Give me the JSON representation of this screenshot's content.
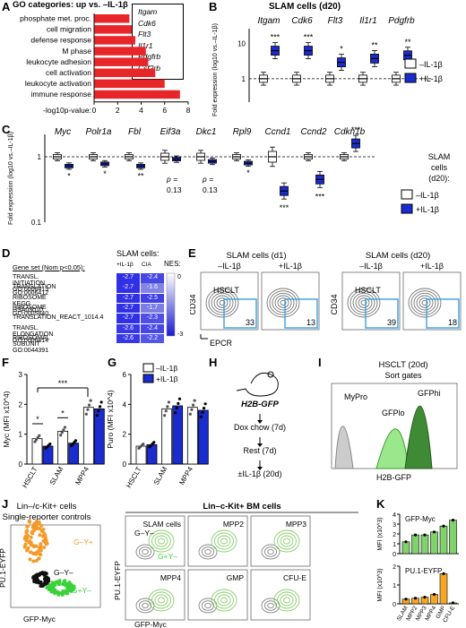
{
  "panels": {
    "A": "A",
    "B": "B",
    "C": "C",
    "D": "D",
    "E": "E",
    "F": "F",
    "G": "G",
    "H": "H",
    "I": "I",
    "J": "J",
    "K": "K"
  },
  "A": {
    "title": "GO categories: up vs. –IL-1β",
    "xlabel": "-log10p-value:",
    "ticks": [
      "0",
      "2",
      "4",
      "6",
      "8"
    ],
    "chart_data": {
      "type": "bar",
      "categories": [
        "phosphate met. proc.",
        "cell migration",
        "defense response",
        "M phase",
        "leukocyte adhesion",
        "cell activation",
        "leukocyte activation",
        "immune response"
      ],
      "values": [
        3.0,
        3.2,
        3.5,
        4.4,
        4.6,
        5.2,
        6.0,
        7.3
      ],
      "xlim": [
        0,
        8
      ],
      "color": "#e8262a"
    },
    "genes": [
      "Itgam",
      "Cdk6",
      "Flt3",
      "Il1r1",
      "Pdgfrb",
      "Csf2rb"
    ]
  },
  "B": {
    "title": "SLAM cells (d20)",
    "ylabel": "Fold expression (log10 vs.–IL-1β)",
    "yticks": [
      "1",
      "10"
    ],
    "genes": [
      "Itgam",
      "Cdk6",
      "Flt3",
      "Il1r1",
      "Pdgfrb"
    ],
    "stars": [
      "***",
      "***",
      "*",
      "**",
      "**"
    ],
    "legend": [
      "–IL-1β",
      "+IL-1β"
    ],
    "chart_data": {
      "type": "box",
      "categories": [
        "Itgam",
        "Cdk6",
        "Flt3",
        "Il1r1",
        "Pdgfrb"
      ],
      "series": [
        {
          "name": "–IL-1β",
          "median": [
            1,
            1,
            1,
            1,
            1
          ]
        },
        {
          "name": "+IL-1β",
          "median": [
            3.0,
            3.0,
            1.9,
            2.2,
            2.5
          ]
        }
      ]
    }
  },
  "C": {
    "ylabel": "Fold expression (log10 vs.–IL-1β)",
    "yticks": [
      "1",
      "0.1"
    ],
    "genes": [
      "Myc",
      "Polr1a",
      "Fbl",
      "Eif3a",
      "Dkc1",
      "Rpl9",
      "Ccnd1",
      "Ccnd2",
      "Cdkn1b"
    ],
    "stars": [
      "*",
      "*",
      "**",
      "p = 0.13",
      "p = 0.13",
      "*",
      "***",
      "***",
      "***"
    ],
    "legend_title": "SLAM cells (d20):",
    "legend": [
      "–IL-1β",
      "+IL-1β"
    ],
    "chart_data": {
      "type": "box",
      "categories": [
        "Myc",
        "Polr1a",
        "Fbl",
        "Eif3a",
        "Dkc1",
        "Rpl9",
        "Ccnd1",
        "Ccnd2",
        "Cdkn1b"
      ],
      "series": [
        {
          "name": "–IL-1β",
          "median": [
            1,
            1,
            1,
            1,
            1,
            1,
            1,
            1,
            1
          ]
        },
        {
          "name": "+IL-1β",
          "median": [
            0.72,
            0.78,
            0.72,
            0.92,
            0.85,
            0.8,
            0.3,
            0.45,
            1.6
          ]
        }
      ]
    }
  },
  "D": {
    "heading": "Gene set (Nom p<0.05):",
    "col_header": "SLAM cells:",
    "cols": [
      "+IL-1β",
      "CIA"
    ],
    "nes": "NES:",
    "scale": [
      "0",
      "-3"
    ],
    "rows": [
      {
        "name": "TRANSL. INITIATION GO:0006413",
        "v": [
          "-2.7",
          "-2.4"
        ]
      },
      {
        "name": "TRANSLATION GO:0006412",
        "v": [
          "-2.7",
          "-1.6"
        ]
      },
      {
        "name": "RIBOSOME KEGG HSA03010",
        "v": [
          "-2.7",
          "-2.5"
        ]
      },
      {
        "name": "RIBOSOME GO:0005840",
        "v": [
          "-2.7",
          "-1.7"
        ]
      },
      {
        "name": "TRANSLATION_REACT_1014.4",
        "v": [
          "-2.7",
          "-2.3"
        ]
      },
      {
        "name": "TRANSL. ELONGATION GO:0006414",
        "v": [
          "-2.6",
          "-2.4"
        ]
      },
      {
        "name": "RIBOSOMAL SUBUNIT GO:0044391",
        "v": [
          "-2.6",
          "-2.2"
        ]
      }
    ]
  },
  "E": {
    "left_title": "SLAM cells (d1)",
    "right_title": "SLAM cells (d20)",
    "cond": [
      "–IL-1β",
      "+IL-1β",
      "–IL-1β",
      "+IL-1β"
    ],
    "values": [
      "33",
      "13",
      "39",
      "18"
    ],
    "gate": "HSCLT",
    "xlabel": "EPCR",
    "ylabel": "CD34"
  },
  "F": {
    "ylabel": "Myc (MFI x10^4)",
    "yticks": [
      "0",
      "1",
      "2",
      "3"
    ],
    "legend": [
      "–IL-1β",
      "+IL-1β"
    ],
    "stars": [
      "*",
      "*",
      "***"
    ],
    "chart_data": {
      "type": "bar",
      "categories": [
        "HSCLT",
        "SLAM",
        "MPP4"
      ],
      "series": [
        {
          "name": "–IL-1β",
          "values": [
            0.85,
            1.1,
            1.9
          ]
        },
        {
          "name": "+IL-1β",
          "values": [
            0.6,
            0.7,
            1.85
          ]
        }
      ],
      "ylim": [
        0,
        3
      ]
    }
  },
  "G": {
    "ylabel": "Puro (MFI x10^4)",
    "yticks": [
      "0",
      "2",
      "4",
      "6"
    ],
    "chart_data": {
      "type": "bar",
      "categories": [
        "HSCLT",
        "SLAM",
        "MPP4"
      ],
      "series": [
        {
          "name": "–IL-1β",
          "values": [
            1.2,
            3.7,
            3.8
          ]
        },
        {
          "name": "+IL-1β",
          "values": [
            1.3,
            3.9,
            3.6
          ]
        }
      ],
      "ylim": [
        0,
        6
      ]
    }
  },
  "H": {
    "mouse": "H2B-GFP",
    "steps": [
      "Dox chow (7d)",
      "Rest (7d)",
      "±IL-1β (20d)"
    ]
  },
  "I": {
    "title": "HSCLT (20d)",
    "subtitle": "Sort gates",
    "labels": [
      "MyPro",
      "GFPlo",
      "GFPhi"
    ],
    "xlabel": "H2B-GFP"
  },
  "J": {
    "left_title": "Lin–/c-Kit+ cells",
    "left_sub": "Single-reporter controls",
    "right_title": "Lin–c-Kit+ BM cells",
    "gates": [
      "G–Y+",
      "G–Y–",
      "G+Y–"
    ],
    "cells": [
      "SLAM cells",
      "MPP2",
      "MPP3",
      "MPP4",
      "GMP",
      "CFU-E"
    ],
    "xlabel": "GFP-Myc",
    "ylabel": "PU.1-EYFP"
  },
  "K": {
    "top_label": "GFP-Myc",
    "bot_label": "PU.1-EYFP",
    "top_ylabel": "MFI (x10^3)",
    "bot_ylabel": "MFI (x10^3)",
    "top_yticks": [
      "0",
      "1",
      "2",
      "3",
      "4"
    ],
    "bot_yticks": [
      "0",
      "1",
      "2"
    ],
    "chart_data": [
      {
        "type": "bar",
        "categories": [
          "SLAM",
          "MPP2",
          "MPP3",
          "MPP4",
          "GMP",
          "CFU-E"
        ],
        "values": [
          1.2,
          1.9,
          1.9,
          2.2,
          2.8,
          3.4
        ],
        "ylim": [
          0,
          4
        ]
      },
      {
        "type": "bar",
        "categories": [
          "SLAM",
          "MPP2",
          "MPP3",
          "MPP4",
          "GMP",
          "CFU-E"
        ],
        "values": [
          0.25,
          0.3,
          0.35,
          0.5,
          1.6,
          0.05
        ],
        "ylim": [
          0,
          2
        ]
      }
    ]
  }
}
